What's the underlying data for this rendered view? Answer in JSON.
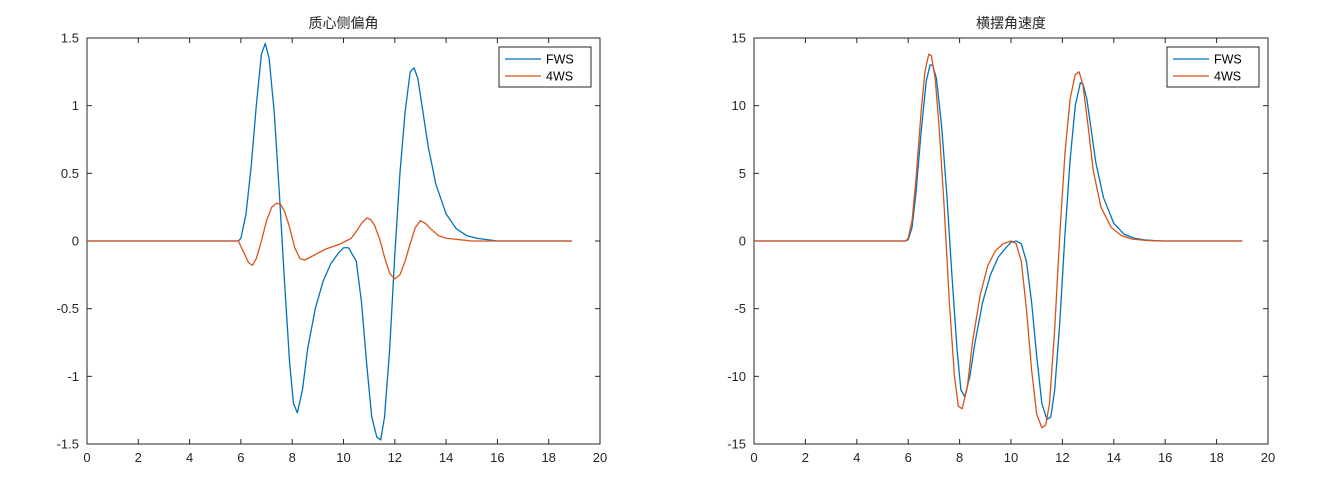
{
  "chart_data": [
    {
      "type": "line",
      "title": "质心侧偏角",
      "xlabel": "",
      "ylabel": "",
      "xlim": [
        0,
        20
      ],
      "ylim": [
        -1.5,
        1.5
      ],
      "xticks": [
        "0",
        "2",
        "4",
        "6",
        "8",
        "10",
        "12",
        "14",
        "16",
        "18",
        "20"
      ],
      "yticks": [
        "-1.5",
        "-1",
        "-0.5",
        "0",
        "0.5",
        "1",
        "1.5"
      ],
      "legend_position": "top-right",
      "grid": false,
      "series": [
        {
          "name": "FWS",
          "color": "#0072BD",
          "x": [
            0,
            5.5,
            5.9,
            6.0,
            6.2,
            6.4,
            6.6,
            6.8,
            6.95,
            7.1,
            7.3,
            7.5,
            7.7,
            7.9,
            8.05,
            8.2,
            8.4,
            8.6,
            8.9,
            9.2,
            9.5,
            9.8,
            10.0,
            10.2,
            10.5,
            10.7,
            10.9,
            11.1,
            11.3,
            11.45,
            11.6,
            11.8,
            12.0,
            12.2,
            12.4,
            12.6,
            12.75,
            12.9,
            13.1,
            13.3,
            13.6,
            14.0,
            14.4,
            14.8,
            15.2,
            15.6,
            16.0,
            17.0,
            18.0,
            18.9
          ],
          "y": [
            0,
            0,
            0.0,
            0.02,
            0.2,
            0.55,
            1.0,
            1.38,
            1.46,
            1.35,
            0.95,
            0.35,
            -0.3,
            -0.9,
            -1.2,
            -1.27,
            -1.1,
            -0.8,
            -0.5,
            -0.3,
            -0.17,
            -0.09,
            -0.05,
            -0.05,
            -0.15,
            -0.45,
            -0.9,
            -1.3,
            -1.45,
            -1.47,
            -1.3,
            -0.8,
            -0.1,
            0.5,
            0.95,
            1.25,
            1.28,
            1.2,
            0.95,
            0.7,
            0.42,
            0.2,
            0.09,
            0.04,
            0.02,
            0.01,
            0.0,
            0,
            0,
            0
          ]
        },
        {
          "name": "4WS",
          "color": "#D95319",
          "x": [
            0,
            5.5,
            5.9,
            6.1,
            6.3,
            6.45,
            6.6,
            6.8,
            7.0,
            7.2,
            7.4,
            7.55,
            7.7,
            7.9,
            8.1,
            8.3,
            8.5,
            8.7,
            9.0,
            9.3,
            9.6,
            9.9,
            10.1,
            10.3,
            10.5,
            10.7,
            10.9,
            11.05,
            11.2,
            11.4,
            11.6,
            11.8,
            12.0,
            12.2,
            12.4,
            12.6,
            12.8,
            13.0,
            13.2,
            13.4,
            13.7,
            14.0,
            14.5,
            15.0,
            16.0,
            17.0,
            18.0,
            18.9
          ],
          "y": [
            0,
            0,
            0,
            -0.08,
            -0.16,
            -0.18,
            -0.13,
            0.0,
            0.15,
            0.25,
            0.28,
            0.27,
            0.22,
            0.1,
            -0.05,
            -0.13,
            -0.14,
            -0.12,
            -0.09,
            -0.06,
            -0.04,
            -0.02,
            0.0,
            0.02,
            0.07,
            0.13,
            0.17,
            0.16,
            0.12,
            0.02,
            -0.12,
            -0.24,
            -0.28,
            -0.25,
            -0.15,
            -0.02,
            0.1,
            0.15,
            0.13,
            0.09,
            0.04,
            0.02,
            0.01,
            0.0,
            0,
            0,
            0,
            0
          ]
        }
      ]
    },
    {
      "type": "line",
      "title": "横摆角速度",
      "xlabel": "",
      "ylabel": "",
      "xlim": [
        0,
        20
      ],
      "ylim": [
        -15,
        15
      ],
      "xticks": [
        "0",
        "2",
        "4",
        "6",
        "8",
        "10",
        "12",
        "14",
        "16",
        "18",
        "20"
      ],
      "yticks": [
        "-15",
        "-10",
        "-5",
        "0",
        "5",
        "10",
        "15"
      ],
      "legend_position": "top-right",
      "grid": false,
      "series": [
        {
          "name": "FWS",
          "color": "#0072BD",
          "x": [
            0,
            5.5,
            5.9,
            6.0,
            6.15,
            6.3,
            6.5,
            6.7,
            6.85,
            6.95,
            7.1,
            7.3,
            7.5,
            7.7,
            7.9,
            8.05,
            8.2,
            8.4,
            8.6,
            8.9,
            9.2,
            9.5,
            9.8,
            10.0,
            10.2,
            10.4,
            10.6,
            10.8,
            11.0,
            11.2,
            11.4,
            11.55,
            11.7,
            11.9,
            12.1,
            12.3,
            12.5,
            12.7,
            12.8,
            12.95,
            13.1,
            13.3,
            13.6,
            14.0,
            14.4,
            14.8,
            15.2,
            15.6,
            16.0,
            17.0,
            18.0,
            19.0
          ],
          "y": [
            0,
            0,
            0,
            0.1,
            1.0,
            3.5,
            8.0,
            11.8,
            13.0,
            13.0,
            12.0,
            8.5,
            3.5,
            -2.5,
            -8.0,
            -11.0,
            -11.5,
            -10.0,
            -7.5,
            -4.5,
            -2.5,
            -1.2,
            -0.5,
            -0.1,
            0.0,
            -0.2,
            -1.5,
            -4.5,
            -8.5,
            -12.0,
            -13.2,
            -13.0,
            -11.0,
            -6.0,
            0.5,
            6.0,
            10.0,
            11.7,
            11.6,
            10.5,
            8.5,
            5.8,
            3.2,
            1.3,
            0.5,
            0.2,
            0.08,
            0.03,
            0.0,
            0,
            0,
            0
          ]
        },
        {
          "name": "4WS",
          "color": "#D95319",
          "x": [
            0,
            5.5,
            5.9,
            6.0,
            6.15,
            6.3,
            6.5,
            6.65,
            6.8,
            6.9,
            7.05,
            7.2,
            7.4,
            7.6,
            7.8,
            7.95,
            8.1,
            8.3,
            8.5,
            8.8,
            9.1,
            9.4,
            9.7,
            10.0,
            10.2,
            10.4,
            10.6,
            10.8,
            11.0,
            11.2,
            11.35,
            11.5,
            11.7,
            11.9,
            12.1,
            12.3,
            12.5,
            12.65,
            12.8,
            13.0,
            13.2,
            13.5,
            13.9,
            14.3,
            14.7,
            15.2,
            15.7,
            16.0,
            17.0,
            18.0,
            19.0
          ],
          "y": [
            0,
            0,
            0,
            0.2,
            1.5,
            4.5,
            9.5,
            12.5,
            13.8,
            13.7,
            12.0,
            8.5,
            2.5,
            -4.5,
            -10.0,
            -12.2,
            -12.4,
            -10.8,
            -7.5,
            -4.0,
            -1.8,
            -0.7,
            -0.2,
            0.0,
            -0.2,
            -1.5,
            -5.0,
            -9.5,
            -12.8,
            -13.8,
            -13.6,
            -12.0,
            -6.5,
            0.5,
            6.5,
            10.5,
            12.3,
            12.5,
            11.5,
            8.5,
            5.2,
            2.5,
            1.0,
            0.4,
            0.15,
            0.05,
            0.0,
            0,
            0,
            0,
            0
          ]
        }
      ]
    }
  ]
}
